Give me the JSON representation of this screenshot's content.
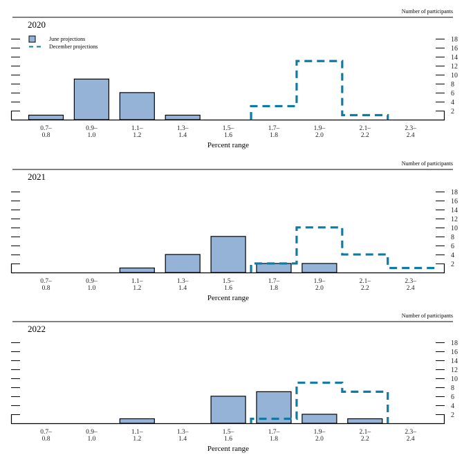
{
  "chart_data": [
    {
      "type": "bar",
      "title": "2020",
      "xlabel": "Percent range",
      "ylabel": "Number of participants",
      "categories": [
        "0.7–0.8",
        "0.9–1.0",
        "1.1–1.2",
        "1.3–1.4",
        "1.5–1.6",
        "1.7–1.8",
        "1.9–2.0",
        "2.1–2.2",
        "2.3–2.4"
      ],
      "category_top": [
        "0.7–",
        "0.9–",
        "1.1–",
        "1.3–",
        "1.5–",
        "1.7–",
        "1.9–",
        "2.1–",
        "2.3–"
      ],
      "category_bottom": [
        "0.8",
        "1.0",
        "1.2",
        "1.4",
        "1.6",
        "1.8",
        "2.0",
        "2.2",
        "2.4"
      ],
      "yticks": [
        2,
        4,
        6,
        8,
        10,
        12,
        14,
        16,
        18
      ],
      "ylim": [
        0,
        20
      ],
      "series": [
        {
          "name": "June projections",
          "style": "bar",
          "values": [
            1,
            9,
            6,
            1,
            0,
            0,
            0,
            0,
            0
          ]
        },
        {
          "name": "December projections",
          "style": "dashed-step",
          "values": [
            0,
            0,
            0,
            0,
            0,
            3,
            13,
            1,
            0
          ]
        }
      ],
      "legend": {
        "position": "top-left",
        "entries": [
          "June projections",
          "December projections"
        ]
      }
    },
    {
      "type": "bar",
      "title": "2021",
      "xlabel": "Percent range",
      "ylabel": "Number of participants",
      "categories": [
        "0.7–0.8",
        "0.9–1.0",
        "1.1–1.2",
        "1.3–1.4",
        "1.5–1.6",
        "1.7–1.8",
        "1.9–2.0",
        "2.1–2.2",
        "2.3–2.4"
      ],
      "category_top": [
        "0.7–",
        "0.9–",
        "1.1–",
        "1.3–",
        "1.5–",
        "1.7–",
        "1.9–",
        "2.1–",
        "2.3–"
      ],
      "category_bottom": [
        "0.8",
        "1.0",
        "1.2",
        "1.4",
        "1.6",
        "1.8",
        "2.0",
        "2.2",
        "2.4"
      ],
      "yticks": [
        2,
        4,
        6,
        8,
        10,
        12,
        14,
        16,
        18
      ],
      "ylim": [
        0,
        20
      ],
      "series": [
        {
          "name": "June projections",
          "style": "bar",
          "values": [
            0,
            0,
            1,
            4,
            8,
            2,
            2,
            0,
            0
          ]
        },
        {
          "name": "December projections",
          "style": "dashed-step",
          "values": [
            0,
            0,
            0,
            0,
            0,
            2,
            10,
            4,
            1
          ]
        }
      ]
    },
    {
      "type": "bar",
      "title": "2022",
      "xlabel": "Percent range",
      "ylabel": "Number of participants",
      "categories": [
        "0.7–0.8",
        "0.9–1.0",
        "1.1–1.2",
        "1.3–1.4",
        "1.5–1.6",
        "1.7–1.8",
        "1.9–2.0",
        "2.1–2.2",
        "2.3–2.4"
      ],
      "category_top": [
        "0.7–",
        "0.9–",
        "1.1–",
        "1.3–",
        "1.5–",
        "1.7–",
        "1.9–",
        "2.1–",
        "2.3–"
      ],
      "category_bottom": [
        "0.8",
        "1.0",
        "1.2",
        "1.4",
        "1.6",
        "1.8",
        "2.0",
        "2.2",
        "2.4"
      ],
      "yticks": [
        2,
        4,
        6,
        8,
        10,
        12,
        14,
        16,
        18
      ],
      "ylim": [
        0,
        20
      ],
      "series": [
        {
          "name": "June projections",
          "style": "bar",
          "values": [
            0,
            0,
            1,
            0,
            6,
            7,
            2,
            1,
            0
          ]
        },
        {
          "name": "December projections",
          "style": "dashed-step",
          "values": [
            0,
            0,
            0,
            0,
            0,
            1,
            9,
            7,
            0
          ]
        }
      ]
    }
  ],
  "colors": {
    "june_fill": "#95b3d7",
    "december_line": "#0f7aa6",
    "axis": "#000000"
  }
}
